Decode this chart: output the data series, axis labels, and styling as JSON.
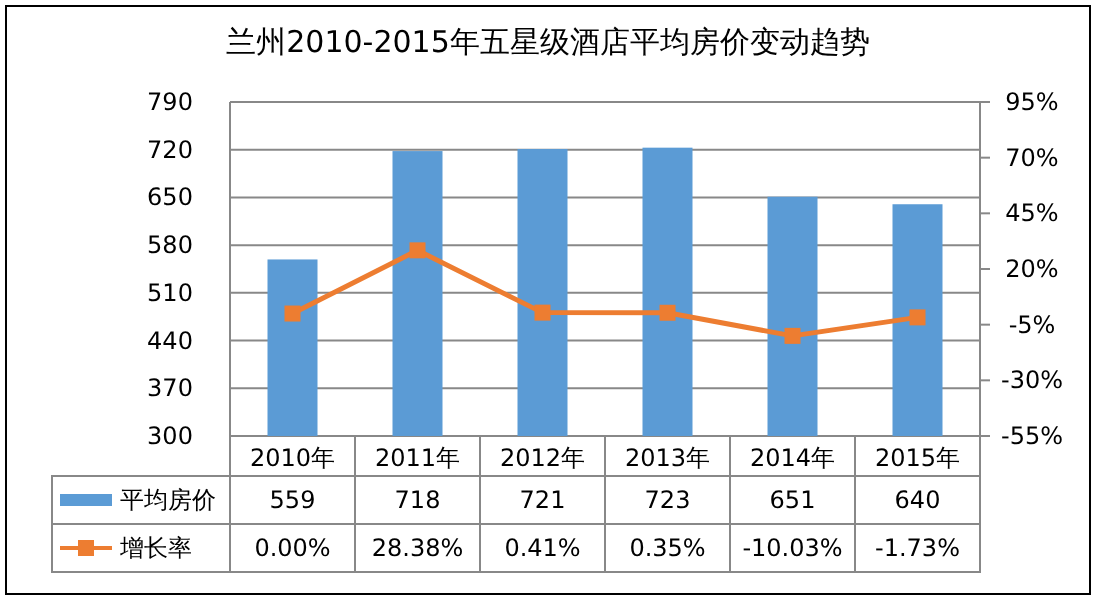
{
  "chart_data": {
    "type": "bar",
    "title": "兰州2010-2015年五星级酒店平均房价变动趋势",
    "categories": [
      "2010年",
      "2011年",
      "2012年",
      "2013年",
      "2014年",
      "2015年"
    ],
    "series": [
      {
        "name": "平均房价",
        "color": "#5b9bd5",
        "values": [
          559,
          718,
          721,
          723,
          651,
          640
        ],
        "data_labels": true
      },
      {
        "name": "增长率",
        "type": "line",
        "axis": "y2",
        "color": "#ed7d31",
        "marker": "square",
        "values": [
          0.0,
          28.38,
          0.41,
          0.35,
          -10.03,
          -1.73
        ],
        "value_labels": [
          "0.00%",
          "28.38%",
          "0.41%",
          "0.35%",
          "-10.03%",
          "-1.73%"
        ]
      }
    ],
    "ylim": [
      300,
      790
    ],
    "yticks": [
      300,
      370,
      440,
      510,
      580,
      650,
      720,
      790
    ],
    "y2lim": [
      -55,
      95
    ],
    "y2ticks": [
      {
        "value": -55,
        "label": "-55%"
      },
      {
        "value": -30,
        "label": "-30%"
      },
      {
        "value": -5,
        "label": "-5%"
      },
      {
        "value": 20,
        "label": "20%"
      },
      {
        "value": 45,
        "label": "45%"
      },
      {
        "value": 70,
        "label": "70%"
      },
      {
        "value": 95,
        "label": "95%"
      }
    ],
    "grid": "y",
    "legend": "bottom"
  }
}
